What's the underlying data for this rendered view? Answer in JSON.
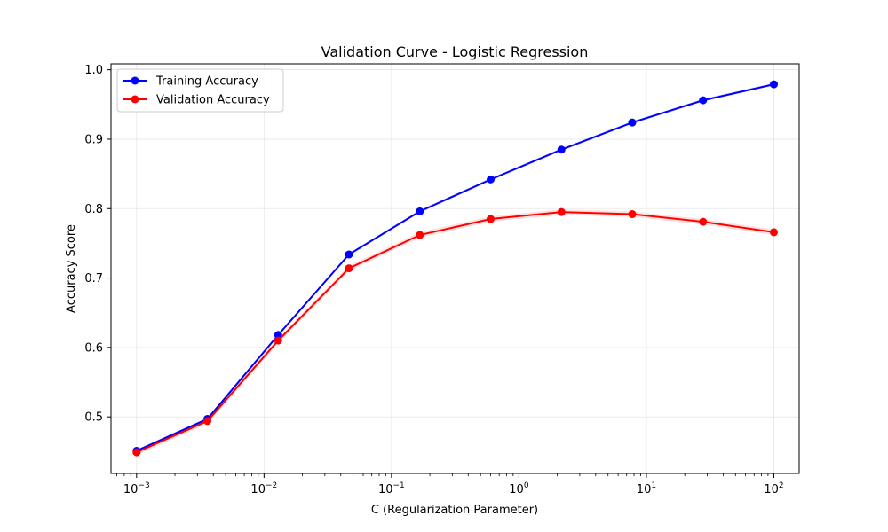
{
  "chart_data": {
    "type": "line",
    "title": "Validation Curve - Logistic Regression",
    "xlabel": "C (Regularization Parameter)",
    "ylabel": "Accuracy Score",
    "xscale": "log",
    "xlim": [
      0.00063,
      158
    ],
    "ylim": [
      0.4185,
      1.0085
    ],
    "grid": true,
    "legend_position": "top-left",
    "x": [
      0.001,
      0.003594,
      0.012915,
      0.046416,
      0.16681,
      0.59948,
      2.1544,
      7.7426,
      27.826,
      100
    ],
    "series": [
      {
        "name": "Training Accuracy",
        "color": "#0000ff",
        "values": [
          0.451,
          0.497,
          0.618,
          0.734,
          0.796,
          0.842,
          0.885,
          0.924,
          0.956,
          0.979
        ],
        "band": 0.002
      },
      {
        "name": "Validation Accuracy",
        "color": "#ff0000",
        "values": [
          0.449,
          0.494,
          0.61,
          0.714,
          0.762,
          0.785,
          0.795,
          0.792,
          0.781,
          0.766
        ],
        "band": 0.004
      }
    ],
    "x_ticks": [
      {
        "value": 0.001,
        "base": "10",
        "exp": "−3"
      },
      {
        "value": 0.01,
        "base": "10",
        "exp": "−2"
      },
      {
        "value": 0.1,
        "base": "10",
        "exp": "−1"
      },
      {
        "value": 1,
        "base": "10",
        "exp": "0"
      },
      {
        "value": 10,
        "base": "10",
        "exp": "1"
      },
      {
        "value": 100,
        "base": "10",
        "exp": "2"
      }
    ],
    "y_ticks": [
      "0.5",
      "0.6",
      "0.7",
      "0.8",
      "0.9",
      "1.0"
    ]
  }
}
